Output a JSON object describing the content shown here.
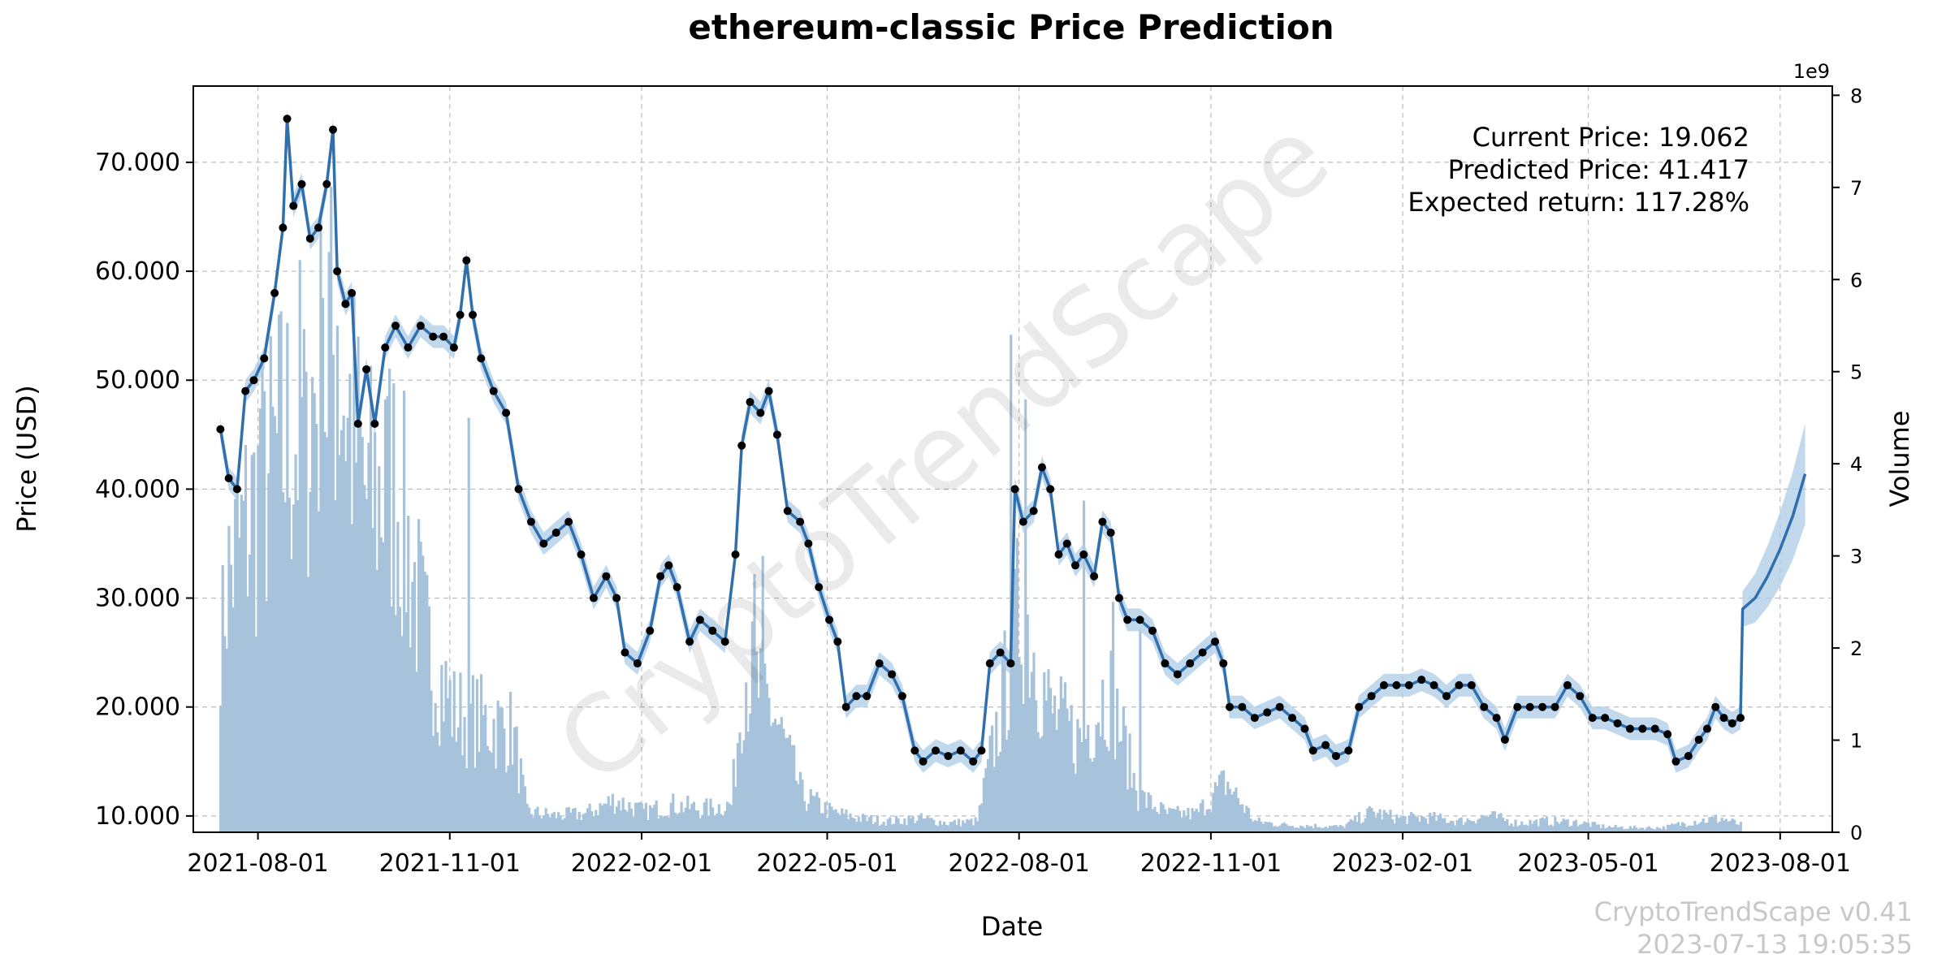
{
  "chart_data": {
    "type": "line",
    "title": "ethereum-classic Price Prediction",
    "xlabel": "Date",
    "ylabel": "Price (USD)",
    "y2label": "Volume",
    "y2_multiplier": "1e9",
    "ylim": [
      8.5,
      77
    ],
    "y2lim": [
      0,
      8.1
    ],
    "xlim": [
      "2021-07-01",
      "2023-08-26"
    ],
    "x_ticks": [
      "2021-08-01",
      "2021-11-01",
      "2022-02-01",
      "2022-05-01",
      "2022-08-01",
      "2022-11-01",
      "2023-02-01",
      "2023-05-01",
      "2023-08-01"
    ],
    "y_ticks": [
      {
        "value": 10,
        "label": "10.000"
      },
      {
        "value": 20,
        "label": "20.000"
      },
      {
        "value": 30,
        "label": "30.000"
      },
      {
        "value": 40,
        "label": "40.000"
      },
      {
        "value": 50,
        "label": "50.000"
      },
      {
        "value": 60,
        "label": "60.000"
      },
      {
        "value": 70,
        "label": "70.000"
      }
    ],
    "y2_ticks": [
      0,
      1,
      2,
      3,
      4,
      5,
      6,
      7,
      8
    ],
    "grid": true,
    "info": {
      "current": "Current Price: 19.062",
      "predicted": "Predicted Price: 41.417",
      "expected": "Expected return: 117.28%"
    },
    "colors": {
      "line": "#2f6fad",
      "band": "#aecbe6",
      "volume": "#a7c3dc",
      "points": "#000000"
    },
    "price_series": [
      {
        "date": "2021-07-14",
        "price": 45.5
      },
      {
        "date": "2021-07-18",
        "price": 41
      },
      {
        "date": "2021-07-22",
        "price": 40
      },
      {
        "date": "2021-07-26",
        "price": 49
      },
      {
        "date": "2021-07-30",
        "price": 50
      },
      {
        "date": "2021-08-04",
        "price": 52
      },
      {
        "date": "2021-08-09",
        "price": 58
      },
      {
        "date": "2021-08-13",
        "price": 64
      },
      {
        "date": "2021-08-15",
        "price": 74
      },
      {
        "date": "2021-08-18",
        "price": 66
      },
      {
        "date": "2021-08-22",
        "price": 68
      },
      {
        "date": "2021-08-26",
        "price": 63
      },
      {
        "date": "2021-08-30",
        "price": 64
      },
      {
        "date": "2021-09-03",
        "price": 68
      },
      {
        "date": "2021-09-06",
        "price": 73
      },
      {
        "date": "2021-09-08",
        "price": 60
      },
      {
        "date": "2021-09-12",
        "price": 57
      },
      {
        "date": "2021-09-15",
        "price": 58
      },
      {
        "date": "2021-09-18",
        "price": 46
      },
      {
        "date": "2021-09-22",
        "price": 51
      },
      {
        "date": "2021-09-26",
        "price": 46
      },
      {
        "date": "2021-10-01",
        "price": 53
      },
      {
        "date": "2021-10-06",
        "price": 55
      },
      {
        "date": "2021-10-12",
        "price": 53
      },
      {
        "date": "2021-10-18",
        "price": 55
      },
      {
        "date": "2021-10-24",
        "price": 54
      },
      {
        "date": "2021-10-29",
        "price": 54
      },
      {
        "date": "2021-11-03",
        "price": 53
      },
      {
        "date": "2021-11-06",
        "price": 56
      },
      {
        "date": "2021-11-09",
        "price": 61
      },
      {
        "date": "2021-11-12",
        "price": 56
      },
      {
        "date": "2021-11-16",
        "price": 52
      },
      {
        "date": "2021-11-22",
        "price": 49
      },
      {
        "date": "2021-11-28",
        "price": 47
      },
      {
        "date": "2021-12-04",
        "price": 40
      },
      {
        "date": "2021-12-10",
        "price": 37
      },
      {
        "date": "2021-12-16",
        "price": 35
      },
      {
        "date": "2021-12-22",
        "price": 36
      },
      {
        "date": "2021-12-28",
        "price": 37
      },
      {
        "date": "2022-01-03",
        "price": 34
      },
      {
        "date": "2022-01-09",
        "price": 30
      },
      {
        "date": "2022-01-15",
        "price": 32
      },
      {
        "date": "2022-01-20",
        "price": 30
      },
      {
        "date": "2022-01-24",
        "price": 25
      },
      {
        "date": "2022-01-30",
        "price": 24
      },
      {
        "date": "2022-02-05",
        "price": 27
      },
      {
        "date": "2022-02-10",
        "price": 32
      },
      {
        "date": "2022-02-14",
        "price": 33
      },
      {
        "date": "2022-02-18",
        "price": 31
      },
      {
        "date": "2022-02-24",
        "price": 26
      },
      {
        "date": "2022-03-01",
        "price": 28
      },
      {
        "date": "2022-03-07",
        "price": 27
      },
      {
        "date": "2022-03-13",
        "price": 26
      },
      {
        "date": "2022-03-18",
        "price": 34
      },
      {
        "date": "2022-03-21",
        "price": 44
      },
      {
        "date": "2022-03-25",
        "price": 48
      },
      {
        "date": "2022-03-30",
        "price": 47
      },
      {
        "date": "2022-04-03",
        "price": 49
      },
      {
        "date": "2022-04-07",
        "price": 45
      },
      {
        "date": "2022-04-12",
        "price": 38
      },
      {
        "date": "2022-04-18",
        "price": 37
      },
      {
        "date": "2022-04-22",
        "price": 35
      },
      {
        "date": "2022-04-27",
        "price": 31
      },
      {
        "date": "2022-05-02",
        "price": 28
      },
      {
        "date": "2022-05-06",
        "price": 26
      },
      {
        "date": "2022-05-10",
        "price": 20
      },
      {
        "date": "2022-05-15",
        "price": 21
      },
      {
        "date": "2022-05-20",
        "price": 21
      },
      {
        "date": "2022-05-26",
        "price": 24
      },
      {
        "date": "2022-06-01",
        "price": 23
      },
      {
        "date": "2022-06-06",
        "price": 21
      },
      {
        "date": "2022-06-12",
        "price": 16
      },
      {
        "date": "2022-06-16",
        "price": 15
      },
      {
        "date": "2022-06-22",
        "price": 16
      },
      {
        "date": "2022-06-28",
        "price": 15.5
      },
      {
        "date": "2022-07-04",
        "price": 16
      },
      {
        "date": "2022-07-10",
        "price": 15
      },
      {
        "date": "2022-07-14",
        "price": 16
      },
      {
        "date": "2022-07-18",
        "price": 24
      },
      {
        "date": "2022-07-23",
        "price": 25
      },
      {
        "date": "2022-07-28",
        "price": 24
      },
      {
        "date": "2022-07-30",
        "price": 40
      },
      {
        "date": "2022-08-03",
        "price": 37
      },
      {
        "date": "2022-08-08",
        "price": 38
      },
      {
        "date": "2022-08-12",
        "price": 42
      },
      {
        "date": "2022-08-16",
        "price": 40
      },
      {
        "date": "2022-08-20",
        "price": 34
      },
      {
        "date": "2022-08-24",
        "price": 35
      },
      {
        "date": "2022-08-28",
        "price": 33
      },
      {
        "date": "2022-09-01",
        "price": 34
      },
      {
        "date": "2022-09-06",
        "price": 32
      },
      {
        "date": "2022-09-10",
        "price": 37
      },
      {
        "date": "2022-09-14",
        "price": 36
      },
      {
        "date": "2022-09-18",
        "price": 30
      },
      {
        "date": "2022-09-22",
        "price": 28
      },
      {
        "date": "2022-09-28",
        "price": 28
      },
      {
        "date": "2022-10-04",
        "price": 27
      },
      {
        "date": "2022-10-10",
        "price": 24
      },
      {
        "date": "2022-10-16",
        "price": 23
      },
      {
        "date": "2022-10-22",
        "price": 24
      },
      {
        "date": "2022-10-28",
        "price": 25
      },
      {
        "date": "2022-11-03",
        "price": 26
      },
      {
        "date": "2022-11-07",
        "price": 24
      },
      {
        "date": "2022-11-10",
        "price": 20
      },
      {
        "date": "2022-11-16",
        "price": 20
      },
      {
        "date": "2022-11-22",
        "price": 19
      },
      {
        "date": "2022-11-28",
        "price": 19.5
      },
      {
        "date": "2022-12-04",
        "price": 20
      },
      {
        "date": "2022-12-10",
        "price": 19
      },
      {
        "date": "2022-12-16",
        "price": 18
      },
      {
        "date": "2022-12-20",
        "price": 16
      },
      {
        "date": "2022-12-26",
        "price": 16.5
      },
      {
        "date": "2022-12-31",
        "price": 15.5
      },
      {
        "date": "2023-01-06",
        "price": 16
      },
      {
        "date": "2023-01-11",
        "price": 20
      },
      {
        "date": "2023-01-17",
        "price": 21
      },
      {
        "date": "2023-01-23",
        "price": 22
      },
      {
        "date": "2023-01-29",
        "price": 22
      },
      {
        "date": "2023-02-04",
        "price": 22
      },
      {
        "date": "2023-02-10",
        "price": 22.5
      },
      {
        "date": "2023-02-16",
        "price": 22
      },
      {
        "date": "2023-02-22",
        "price": 21
      },
      {
        "date": "2023-02-28",
        "price": 22
      },
      {
        "date": "2023-03-06",
        "price": 22
      },
      {
        "date": "2023-03-12",
        "price": 20
      },
      {
        "date": "2023-03-18",
        "price": 19
      },
      {
        "date": "2023-03-22",
        "price": 17
      },
      {
        "date": "2023-03-28",
        "price": 20
      },
      {
        "date": "2023-04-03",
        "price": 20
      },
      {
        "date": "2023-04-09",
        "price": 20
      },
      {
        "date": "2023-04-15",
        "price": 20
      },
      {
        "date": "2023-04-21",
        "price": 22
      },
      {
        "date": "2023-04-27",
        "price": 21
      },
      {
        "date": "2023-05-03",
        "price": 19
      },
      {
        "date": "2023-05-09",
        "price": 19
      },
      {
        "date": "2023-05-15",
        "price": 18.5
      },
      {
        "date": "2023-05-21",
        "price": 18
      },
      {
        "date": "2023-05-27",
        "price": 18
      },
      {
        "date": "2023-06-02",
        "price": 18
      },
      {
        "date": "2023-06-08",
        "price": 17.5
      },
      {
        "date": "2023-06-12",
        "price": 15
      },
      {
        "date": "2023-06-18",
        "price": 15.5
      },
      {
        "date": "2023-06-23",
        "price": 17
      },
      {
        "date": "2023-06-27",
        "price": 18
      },
      {
        "date": "2023-07-01",
        "price": 20
      },
      {
        "date": "2023-07-05",
        "price": 19
      },
      {
        "date": "2023-07-09",
        "price": 18.5
      },
      {
        "date": "2023-07-13",
        "price": 19
      }
    ],
    "forecast_series": [
      {
        "date": "2023-07-13",
        "price": 19
      },
      {
        "date": "2023-07-14",
        "price": 29
      },
      {
        "date": "2023-07-20",
        "price": 30
      },
      {
        "date": "2023-07-26",
        "price": 32
      },
      {
        "date": "2023-08-01",
        "price": 34.5
      },
      {
        "date": "2023-08-07",
        "price": 37.5
      },
      {
        "date": "2023-08-13",
        "price": 41.4
      }
    ],
    "volume_series": [
      {
        "date": "2021-07-14",
        "volume": 2.5
      },
      {
        "date": "2021-07-28",
        "volume": 3.4
      },
      {
        "date": "2021-08-11",
        "volume": 4.1
      },
      {
        "date": "2021-08-25",
        "volume": 4.6
      },
      {
        "date": "2021-09-08",
        "volume": 5.2
      },
      {
        "date": "2021-09-22",
        "volume": 3.6
      },
      {
        "date": "2021-10-06",
        "volume": 3.8
      },
      {
        "date": "2021-10-20",
        "volume": 2.1
      },
      {
        "date": "2021-11-03",
        "volume": 1.3
      },
      {
        "date": "2021-11-17",
        "volume": 1.2
      },
      {
        "date": "2021-12-01",
        "volume": 1.1
      },
      {
        "date": "2021-12-08",
        "volume": 0.22
      },
      {
        "date": "2021-12-22",
        "volume": 0.18
      },
      {
        "date": "2022-01-05",
        "volume": 0.2
      },
      {
        "date": "2022-01-19",
        "volume": 0.35
      },
      {
        "date": "2022-02-02",
        "volume": 0.22
      },
      {
        "date": "2022-02-16",
        "volume": 0.3
      },
      {
        "date": "2022-03-02",
        "volume": 0.25
      },
      {
        "date": "2022-03-16",
        "volume": 0.3
      },
      {
        "date": "2022-03-22",
        "volume": 1.8
      },
      {
        "date": "2022-04-05",
        "volume": 1.3
      },
      {
        "date": "2022-04-19",
        "volume": 0.4
      },
      {
        "date": "2022-05-03",
        "volume": 0.22
      },
      {
        "date": "2022-05-17",
        "volume": 0.15
      },
      {
        "date": "2022-05-31",
        "volume": 0.12
      },
      {
        "date": "2022-06-14",
        "volume": 0.15
      },
      {
        "date": "2022-06-28",
        "volume": 0.1
      },
      {
        "date": "2022-07-12",
        "volume": 0.12
      },
      {
        "date": "2022-07-22",
        "volume": 1.2
      },
      {
        "date": "2022-08-02",
        "volume": 2.5
      },
      {
        "date": "2022-08-16",
        "volume": 1.3
      },
      {
        "date": "2022-08-30",
        "volume": 1.0
      },
      {
        "date": "2022-09-13",
        "volume": 1.6
      },
      {
        "date": "2022-09-27",
        "volume": 0.4
      },
      {
        "date": "2022-10-11",
        "volume": 0.2
      },
      {
        "date": "2022-10-25",
        "volume": 0.2
      },
      {
        "date": "2022-11-08",
        "volume": 0.55
      },
      {
        "date": "2022-11-22",
        "volume": 0.12
      },
      {
        "date": "2022-12-06",
        "volume": 0.08
      },
      {
        "date": "2022-12-20",
        "volume": 0.07
      },
      {
        "date": "2023-01-03",
        "volume": 0.06
      },
      {
        "date": "2023-01-17",
        "volume": 0.22
      },
      {
        "date": "2023-01-31",
        "volume": 0.15
      },
      {
        "date": "2023-02-14",
        "volume": 0.16
      },
      {
        "date": "2023-02-28",
        "volume": 0.12
      },
      {
        "date": "2023-03-14",
        "volume": 0.18
      },
      {
        "date": "2023-03-28",
        "volume": 0.1
      },
      {
        "date": "2023-04-11",
        "volume": 0.12
      },
      {
        "date": "2023-04-25",
        "volume": 0.11
      },
      {
        "date": "2023-05-09",
        "volume": 0.06
      },
      {
        "date": "2023-05-23",
        "volume": 0.05
      },
      {
        "date": "2023-06-06",
        "volume": 0.05
      },
      {
        "date": "2023-06-20",
        "volume": 0.12
      },
      {
        "date": "2023-07-04",
        "volume": 0.15
      },
      {
        "date": "2023-07-13",
        "volume": 0.08
      }
    ],
    "volume_spikes": [
      {
        "date": "2021-07-15",
        "volume": 2.9
      },
      {
        "date": "2021-08-02",
        "volume": 4.6
      },
      {
        "date": "2021-08-24",
        "volume": 5.0
      },
      {
        "date": "2021-09-01",
        "volume": 5.8
      },
      {
        "date": "2021-09-04",
        "volume": 6.3
      },
      {
        "date": "2021-09-08",
        "volume": 5.5
      },
      {
        "date": "2021-09-13",
        "volume": 4.5
      },
      {
        "date": "2021-10-01",
        "volume": 4.7
      },
      {
        "date": "2021-11-10",
        "volume": 4.5
      },
      {
        "date": "2022-03-27",
        "volume": 2.8
      },
      {
        "date": "2022-03-31",
        "volume": 3.0
      },
      {
        "date": "2022-07-28",
        "volume": 5.4
      },
      {
        "date": "2022-08-04",
        "volume": 4.7
      },
      {
        "date": "2022-09-01",
        "volume": 3.6
      },
      {
        "date": "2022-09-15",
        "volume": 2.5
      },
      {
        "date": "2022-09-28",
        "volume": 2.2
      }
    ]
  },
  "footer": {
    "version": "CryptoTrendScape v0.41",
    "timestamp": "2023-07-13 19:05:35"
  },
  "watermark": "CryptoTrendScape"
}
